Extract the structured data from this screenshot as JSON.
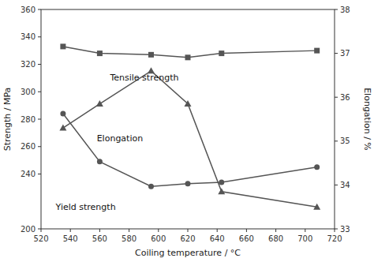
{
  "chart_data": {
    "type": "line",
    "x": [
      535,
      560,
      595,
      620,
      643,
      708
    ],
    "series": [
      {
        "color": "#555555",
        "marker": "square",
        "values": [
          333,
          328,
          327,
          325,
          328,
          330
        ]
      },
      {
        "color": "#555555",
        "marker": "circle",
        "values": [
          284,
          249,
          231,
          233,
          234,
          245
        ]
      },
      {
        "color": "#555555",
        "marker": "triangle",
        "axis": "y2",
        "values": [
          35.3,
          35.85,
          36.6,
          35.85,
          33.85,
          33.5
        ]
      }
    ],
    "xlabel": "Coiling temperature / °C",
    "ylabel": "Strength / MPa",
    "y2label": "Elongation / %",
    "xlim": [
      520,
      720
    ],
    "ylim": [
      200,
      360
    ],
    "y2lim": [
      33,
      38
    ],
    "xticks": [
      520,
      540,
      560,
      580,
      600,
      620,
      640,
      660,
      680,
      700,
      720
    ],
    "yticks": [
      200,
      240,
      260,
      280,
      300,
      320,
      340,
      360
    ],
    "y2ticks": [
      33,
      34,
      35,
      36,
      37,
      38
    ],
    "grid": false,
    "annotations": [
      {
        "text": "Tensile strength",
        "x": 567,
        "y": 308
      },
      {
        "text": "Elongation",
        "x": 558,
        "y": 264
      },
      {
        "text": "Yield strength",
        "x": 530,
        "y": 214
      }
    ]
  }
}
